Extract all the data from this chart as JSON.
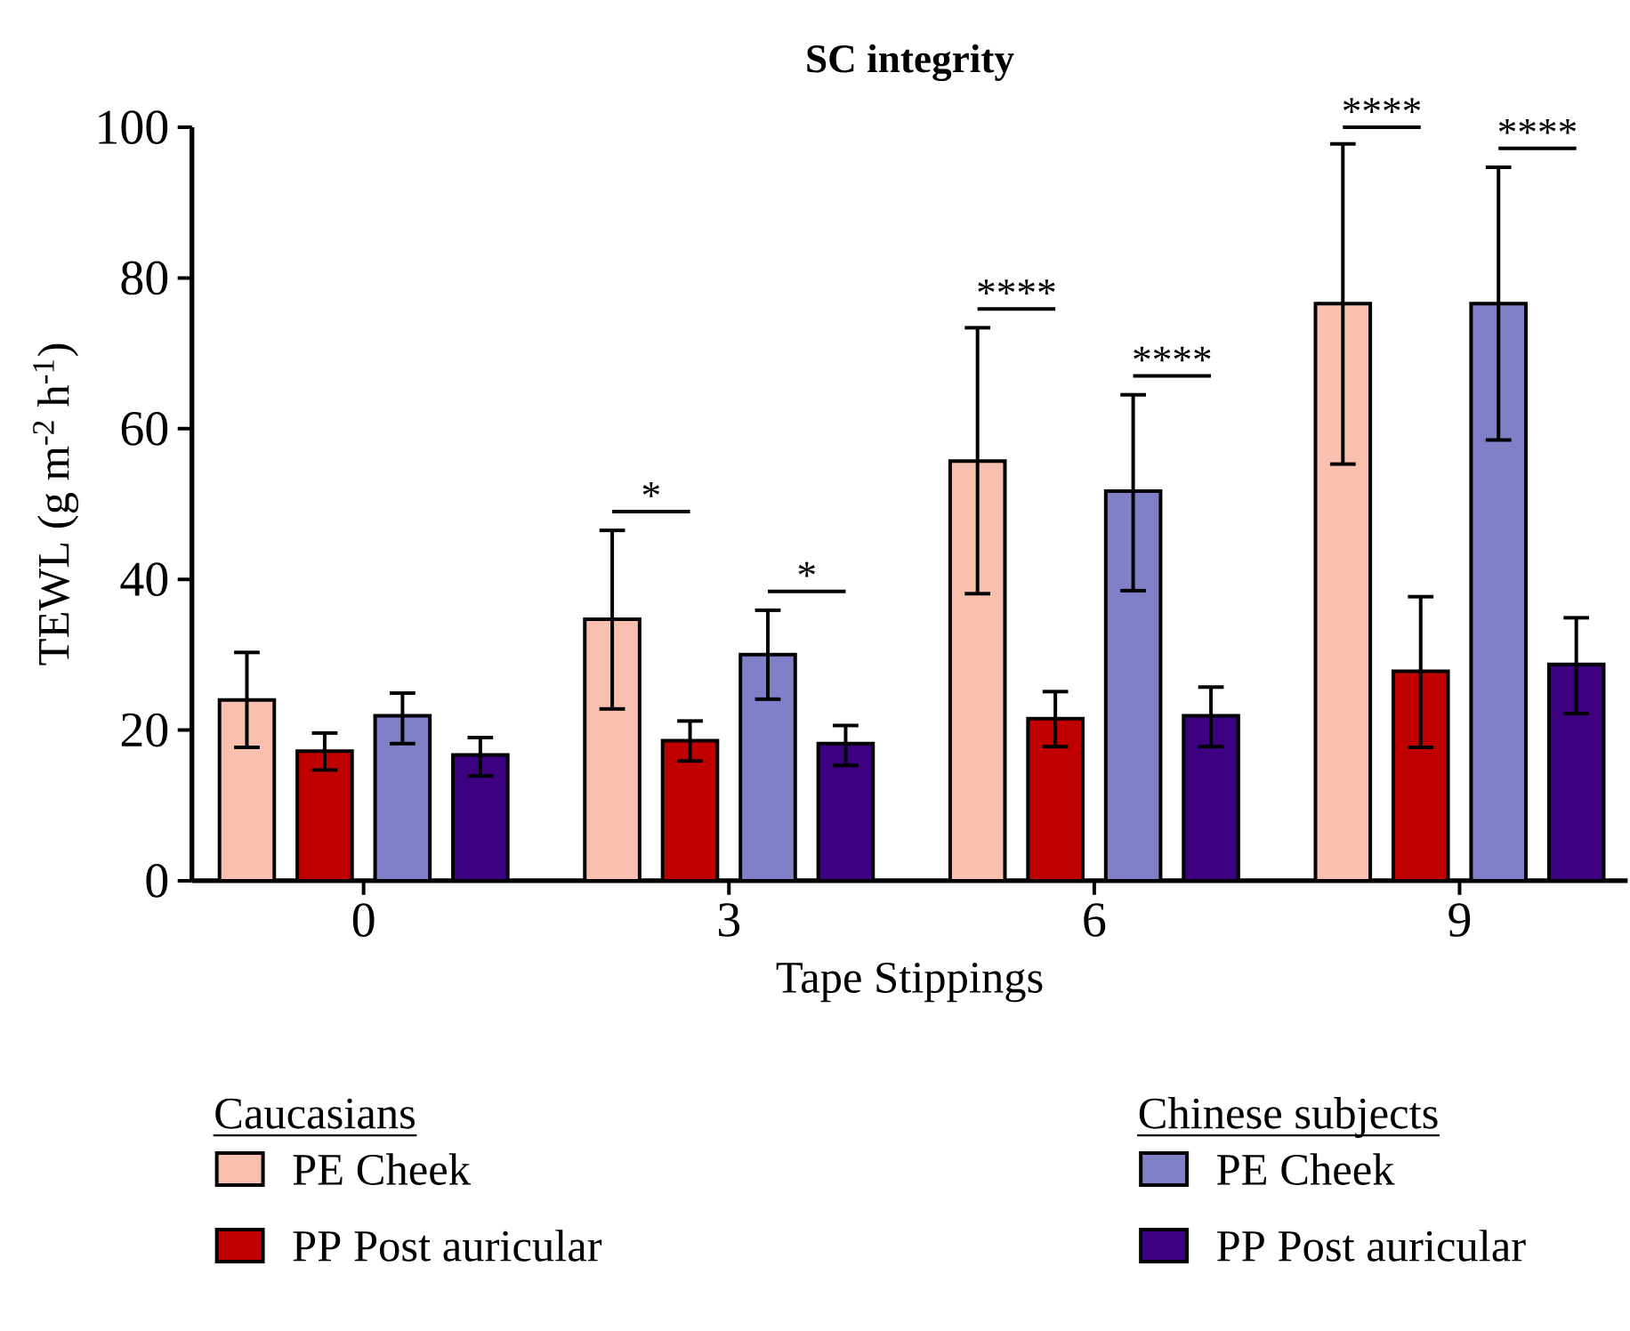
{
  "chart_data": {
    "type": "bar",
    "title": "SC integrity",
    "xlabel": "Tape Stippings",
    "ylabel": "TEWL (g m$^{-2}$ h$^{-1}$)",
    "categories": [
      "0",
      "3",
      "6",
      "9"
    ],
    "ylim": [
      0,
      100
    ],
    "yticks": [
      0,
      20,
      40,
      60,
      80,
      100
    ],
    "legend": "bottom",
    "series": [
      {
        "name": "PE Cheek",
        "color": "#f9c0b0",
        "values": [
          24.0,
          34.7,
          55.7,
          76.6
        ],
        "errors": [
          [
            17.7,
            30.3
          ],
          [
            22.8,
            46.5
          ],
          [
            38.1,
            73.4
          ],
          [
            55.3,
            97.8
          ]
        ]
      },
      {
        "name": "PP Post auricular",
        "color": "#c00000",
        "values": [
          17.2,
          18.6,
          21.5,
          27.8
        ],
        "errors": [
          [
            14.7,
            19.6
          ],
          [
            15.9,
            21.2
          ],
          [
            17.8,
            25.1
          ],
          [
            17.7,
            37.7
          ]
        ]
      },
      {
        "name": "PE Cheek",
        "color": "#8080c8",
        "values": [
          21.9,
          30.0,
          51.7,
          76.6
        ],
        "errors": [
          [
            18.2,
            24.9
          ],
          [
            24.1,
            35.9
          ],
          [
            38.5,
            64.5
          ],
          [
            58.5,
            94.7
          ]
        ]
      },
      {
        "name": "PP Post auricular",
        "color": "#3d0080",
        "values": [
          16.7,
          18.2,
          21.9,
          28.7
        ],
        "errors": [
          [
            13.9,
            19.0
          ],
          [
            15.3,
            20.6
          ],
          [
            17.8,
            25.7
          ],
          [
            22.2,
            34.9
          ]
        ]
      }
    ],
    "annotations": [
      "Caucasians",
      "Chinese subjects",
      "*",
      "*",
      "****",
      "****",
      "****",
      "****"
    ]
  }
}
